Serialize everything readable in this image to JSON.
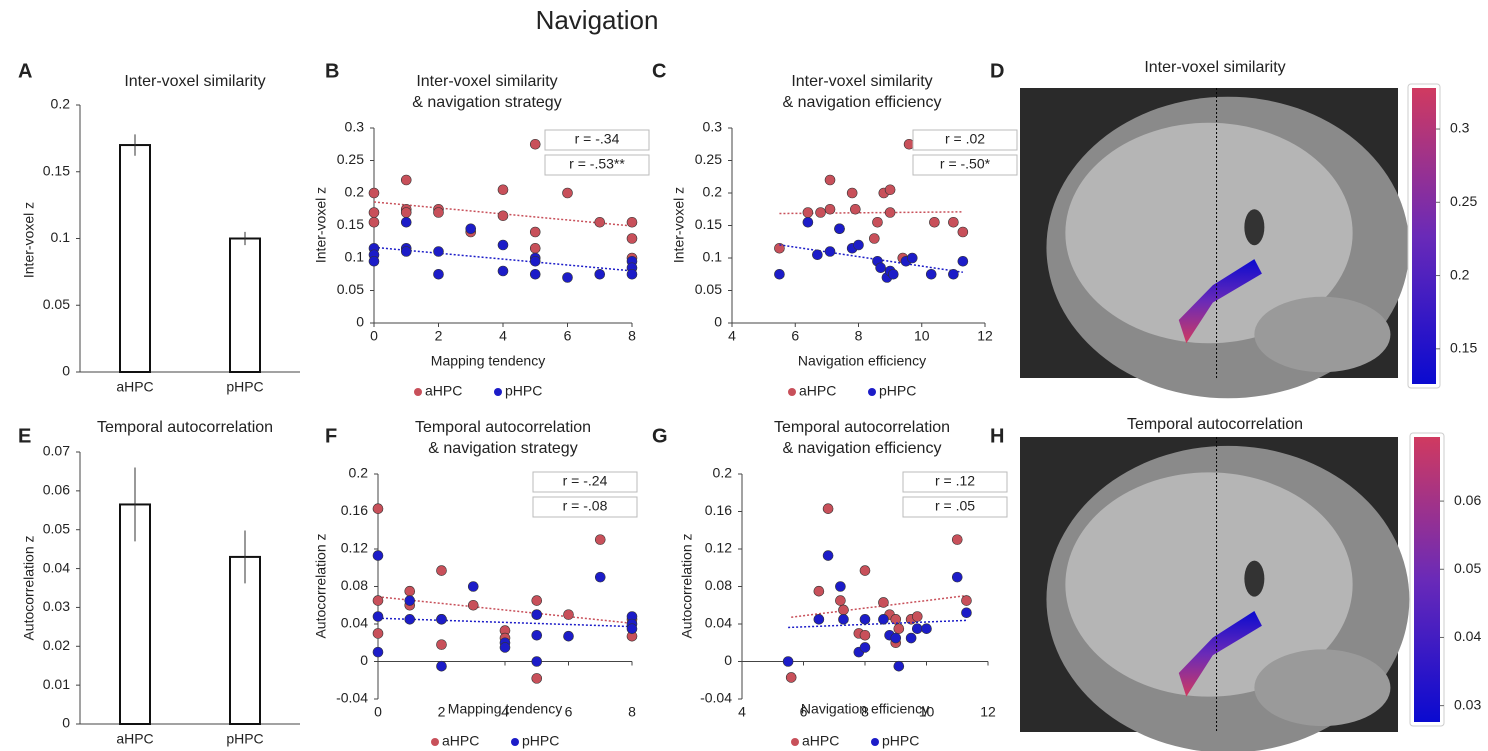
{
  "title": "Navigation",
  "chart_data": [
    {
      "type": "bar",
      "panel_label": "A",
      "title": [
        "Inter-voxel similarity"
      ],
      "y_label": "Inter-voxel z",
      "categories": [
        "aHPC",
        "pHPC"
      ],
      "values": [
        0.17,
        0.1
      ],
      "errors": [
        0.008,
        0.005
      ],
      "ylim": [
        0,
        0.2
      ],
      "yticks": [
        0,
        0.05,
        0.1,
        0.15,
        0.2
      ],
      "color": "#ffffff"
    },
    {
      "type": "scatter",
      "panel_label": "B",
      "title": [
        "Inter-voxel similarity",
        "& navigation strategy"
      ],
      "x_label": "Mapping tendency",
      "y_label": "Inter-voxel z",
      "xlim": [
        0,
        8
      ],
      "xticks": [
        0,
        2,
        4,
        6,
        8
      ],
      "ylim": [
        0,
        0.3
      ],
      "yticks": [
        0,
        0.05,
        0.1,
        0.15,
        0.2,
        0.25,
        0.3
      ],
      "annotations": [
        "r = -.34",
        "r = -.53**"
      ],
      "trendline": true,
      "series": [
        {
          "name": "aHPC",
          "color": "#c8505a",
          "x": [
            0,
            0,
            0,
            1,
            1,
            1,
            2,
            2,
            3,
            4,
            4,
            5,
            5,
            5,
            6,
            7,
            8,
            8,
            8
          ],
          "y": [
            0.2,
            0.17,
            0.155,
            0.22,
            0.175,
            0.17,
            0.175,
            0.17,
            0.14,
            0.205,
            0.165,
            0.275,
            0.14,
            0.115,
            0.2,
            0.155,
            0.155,
            0.13,
            0.1
          ]
        },
        {
          "name": "pHPC",
          "color": "#1c1cc8",
          "x": [
            0,
            0,
            0,
            1,
            1,
            1,
            2,
            2,
            3,
            4,
            4,
            5,
            5,
            5,
            6,
            7,
            8,
            8,
            8
          ],
          "y": [
            0.115,
            0.105,
            0.095,
            0.155,
            0.115,
            0.11,
            0.11,
            0.075,
            0.145,
            0.12,
            0.08,
            0.1,
            0.095,
            0.075,
            0.07,
            0.075,
            0.095,
            0.085,
            0.075
          ]
        }
      ]
    },
    {
      "type": "scatter",
      "panel_label": "C",
      "title": [
        "Inter-voxel similarity",
        "& navigation efficiency"
      ],
      "x_label": "Navigation efficiency",
      "y_label": "Inter-voxel z",
      "xlim": [
        4,
        12
      ],
      "xticks": [
        4,
        6,
        8,
        10,
        12
      ],
      "ylim": [
        0,
        0.3
      ],
      "yticks": [
        0,
        0.05,
        0.1,
        0.15,
        0.2,
        0.25,
        0.3
      ],
      "annotations": [
        "r = .02",
        "r = -.50*"
      ],
      "trendline": true,
      "series": [
        {
          "name": "aHPC",
          "color": "#c8505a",
          "x": [
            5.5,
            6.4,
            6.8,
            7.1,
            7.1,
            7.4,
            7.8,
            7.9,
            8.6,
            8.8,
            9,
            9,
            9.6,
            9.4,
            10.4,
            11,
            11.3,
            8.5
          ],
          "y": [
            0.115,
            0.17,
            0.17,
            0.22,
            0.175,
            0.145,
            0.2,
            0.175,
            0.155,
            0.2,
            0.205,
            0.17,
            0.275,
            0.1,
            0.155,
            0.155,
            0.14,
            0.13
          ]
        },
        {
          "name": "pHPC",
          "color": "#1c1cc8",
          "x": [
            5.5,
            6.4,
            6.7,
            7.1,
            7.4,
            7.8,
            8,
            8.6,
            8.7,
            8.9,
            9,
            9.1,
            9.5,
            9.7,
            10.3,
            11,
            11.3
          ],
          "y": [
            0.075,
            0.155,
            0.105,
            0.11,
            0.145,
            0.115,
            0.12,
            0.095,
            0.085,
            0.07,
            0.08,
            0.075,
            0.095,
            0.1,
            0.075,
            0.075,
            0.095
          ]
        }
      ]
    },
    {
      "type": "colorbar",
      "panel_label": "D",
      "title": [
        "Inter-voxel similarity"
      ],
      "ylim": [
        0.126,
        0.328
      ],
      "yticks": [
        0.15,
        0.2,
        0.25,
        0.3
      ],
      "colors": [
        "#0a0ad0",
        "#6a2ab8",
        "#d03a60"
      ]
    },
    {
      "type": "bar",
      "panel_label": "E",
      "title": [
        "Temporal autocorrelation"
      ],
      "y_label": "Autocorrelation z",
      "categories": [
        "aHPC",
        "pHPC"
      ],
      "values": [
        0.0565,
        0.043
      ],
      "errors": [
        0.0095,
        0.0068
      ],
      "ylim": [
        0,
        0.07
      ],
      "yticks": [
        0,
        0.01,
        0.02,
        0.03,
        0.04,
        0.05,
        0.06,
        0.07
      ],
      "color": "#ffffff"
    },
    {
      "type": "scatter",
      "panel_label": "F",
      "title": [
        "Temporal autocorrelation",
        "& navigation strategy"
      ],
      "x_label": "Mapping tendency",
      "y_label": "Autocorrelation z",
      "xlim": [
        0,
        8
      ],
      "xticks": [
        0,
        2,
        4,
        6,
        8
      ],
      "ylim": [
        -0.04,
        0.2
      ],
      "yticks": [
        -0.04,
        0,
        0.04,
        0.08,
        0.12,
        0.16,
        0.2
      ],
      "annotations": [
        "r = -.24",
        "r = -.08"
      ],
      "trendline": true,
      "series": [
        {
          "name": "aHPC",
          "color": "#c8505a",
          "x": [
            0,
            0,
            0,
            1,
            1,
            2,
            2,
            2,
            3,
            4,
            4,
            5,
            5,
            5,
            6,
            7,
            8,
            8
          ],
          "y": [
            0.163,
            0.065,
            0.03,
            0.075,
            0.06,
            0.097,
            0.045,
            0.018,
            0.06,
            0.033,
            0.025,
            0.065,
            0.05,
            -0.018,
            0.05,
            0.13,
            0.045,
            0.027
          ]
        },
        {
          "name": "pHPC",
          "color": "#1c1cc8",
          "x": [
            0,
            0,
            0,
            1,
            1,
            2,
            2,
            3,
            4,
            4,
            5,
            5,
            5,
            6,
            7,
            8,
            8,
            8
          ],
          "y": [
            0.113,
            0.048,
            0.01,
            0.065,
            0.045,
            0.045,
            -0.005,
            0.08,
            0.02,
            0.015,
            0.05,
            0.028,
            0,
            0.027,
            0.09,
            0.048,
            0.04,
            0.035
          ]
        }
      ]
    },
    {
      "type": "scatter",
      "panel_label": "G",
      "title": [
        "Temporal autocorrelation",
        "& navigation efficiency"
      ],
      "x_label": "Navigation efficiency",
      "y_label": "Autocorrelation z",
      "xlim": [
        4,
        12
      ],
      "xticks": [
        4,
        6,
        8,
        10,
        12
      ],
      "ylim": [
        -0.04,
        0.2
      ],
      "yticks": [
        -0.04,
        0,
        0.04,
        0.08,
        0.12,
        0.16,
        0.2
      ],
      "annotations": [
        "r = .12",
        "r = .05"
      ],
      "trendline": true,
      "series": [
        {
          "name": "aHPC",
          "color": "#c8505a",
          "x": [
            5.6,
            6.5,
            6.8,
            7.2,
            7.3,
            7.8,
            8,
            8,
            8.6,
            8.8,
            9,
            9.1,
            9.5,
            9.7,
            11,
            11.3,
            9
          ],
          "y": [
            -0.017,
            0.075,
            0.163,
            0.065,
            0.055,
            0.03,
            0.097,
            0.028,
            0.063,
            0.05,
            0.045,
            0.035,
            0.045,
            0.048,
            0.13,
            0.065,
            0.02
          ]
        },
        {
          "name": "pHPC",
          "color": "#1c1cc8",
          "x": [
            5.5,
            6.5,
            6.8,
            7.2,
            7.3,
            7.8,
            8,
            8,
            8.6,
            8.8,
            9,
            9.1,
            9.5,
            9.7,
            10,
            11,
            11.3
          ],
          "y": [
            0,
            0.045,
            0.113,
            0.08,
            0.045,
            0.01,
            0.015,
            0.045,
            0.045,
            0.028,
            0.025,
            -0.005,
            0.025,
            0.035,
            0.035,
            0.09,
            0.052
          ]
        }
      ]
    },
    {
      "type": "colorbar",
      "panel_label": "H",
      "title": [
        "Temporal autocorrelation"
      ],
      "ylim": [
        0.0276,
        0.0694
      ],
      "yticks": [
        0.03,
        0.04,
        0.05,
        0.06
      ],
      "colors": [
        "#0a0ad0",
        "#6a2ab8",
        "#d03a60"
      ]
    }
  ]
}
